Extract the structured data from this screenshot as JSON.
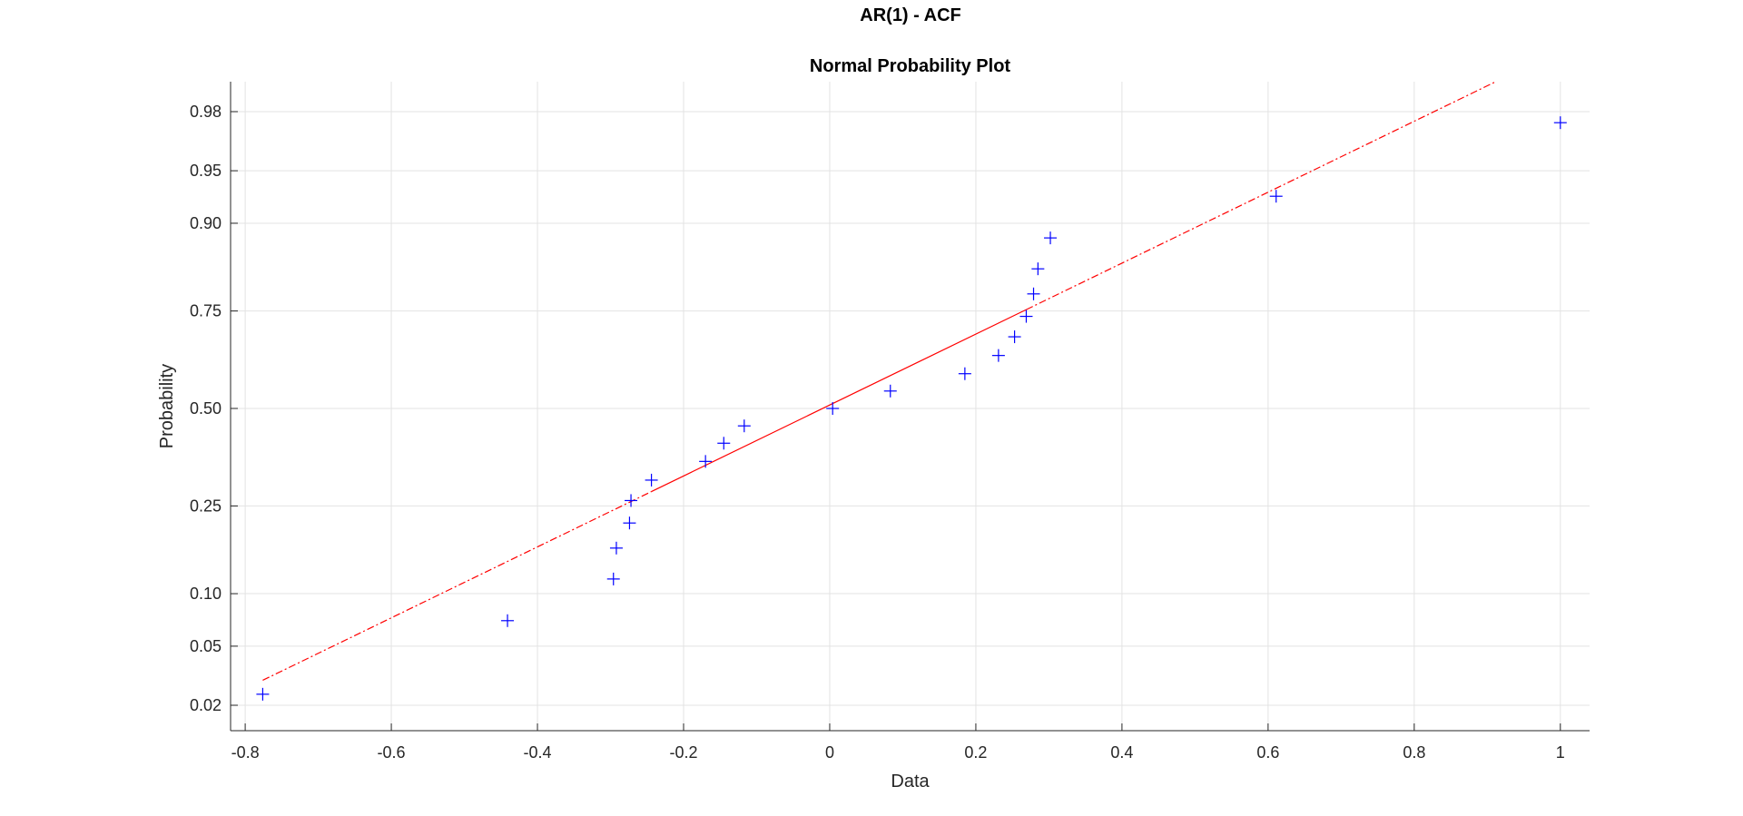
{
  "figure": {
    "suptitle": "AR(1) - ACF"
  },
  "chart_data": {
    "type": "scatter",
    "title": "Normal Probability Plot",
    "xlabel": "Data",
    "ylabel": "Probability",
    "xlim": [
      -0.82,
      1.04
    ],
    "x_ticks": [
      -0.8,
      -0.6,
      -0.4,
      -0.2,
      0,
      0.2,
      0.4,
      0.6,
      0.8,
      1
    ],
    "x_tick_labels": [
      "-0.8",
      "-0.6",
      "-0.4",
      "-0.2",
      "0",
      "0.2",
      "0.4",
      "0.6",
      "0.8",
      "1"
    ],
    "y_scale": "normal-probability",
    "y_ticks": [
      0.02,
      0.05,
      0.1,
      0.25,
      0.5,
      0.75,
      0.9,
      0.95,
      0.98
    ],
    "y_tick_labels": [
      "0.02",
      "0.05",
      "0.10",
      "0.25",
      "0.50",
      "0.75",
      "0.90",
      "0.95",
      "0.98"
    ],
    "grid": true,
    "marker_color": "#0000ff",
    "line_color": "#ff0000",
    "series": [
      {
        "marker": "+",
        "points": [
          {
            "x": -0.776,
            "y": 0.024
          },
          {
            "x": -0.441,
            "y": 0.071
          },
          {
            "x": -0.296,
            "y": 0.119
          },
          {
            "x": -0.292,
            "y": 0.167
          },
          {
            "x": -0.274,
            "y": 0.214
          },
          {
            "x": -0.272,
            "y": 0.262
          },
          {
            "x": -0.244,
            "y": 0.31
          },
          {
            "x": -0.17,
            "y": 0.357
          },
          {
            "x": -0.145,
            "y": 0.405
          },
          {
            "x": -0.117,
            "y": 0.452
          },
          {
            "x": 0.004,
            "y": 0.5
          },
          {
            "x": 0.083,
            "y": 0.548
          },
          {
            "x": 0.185,
            "y": 0.595
          },
          {
            "x": 0.231,
            "y": 0.643
          },
          {
            "x": 0.253,
            "y": 0.69
          },
          {
            "x": 0.269,
            "y": 0.738
          },
          {
            "x": 0.279,
            "y": 0.786
          },
          {
            "x": 0.285,
            "y": 0.833
          },
          {
            "x": 0.302,
            "y": 0.881
          },
          {
            "x": 0.611,
            "y": 0.929
          },
          {
            "x": 1.0,
            "y": 0.976
          }
        ]
      }
    ],
    "reference_line": {
      "solid_x": [
        -0.244,
        0.269
      ],
      "dashed_low_x": [
        -0.776,
        -0.244
      ],
      "dashed_high_x": [
        0.269,
        0.91
      ],
      "endpoints": [
        {
          "x": -0.776,
          "y": 0.03
        },
        {
          "x": 0.91,
          "y": 0.988
        }
      ]
    }
  }
}
